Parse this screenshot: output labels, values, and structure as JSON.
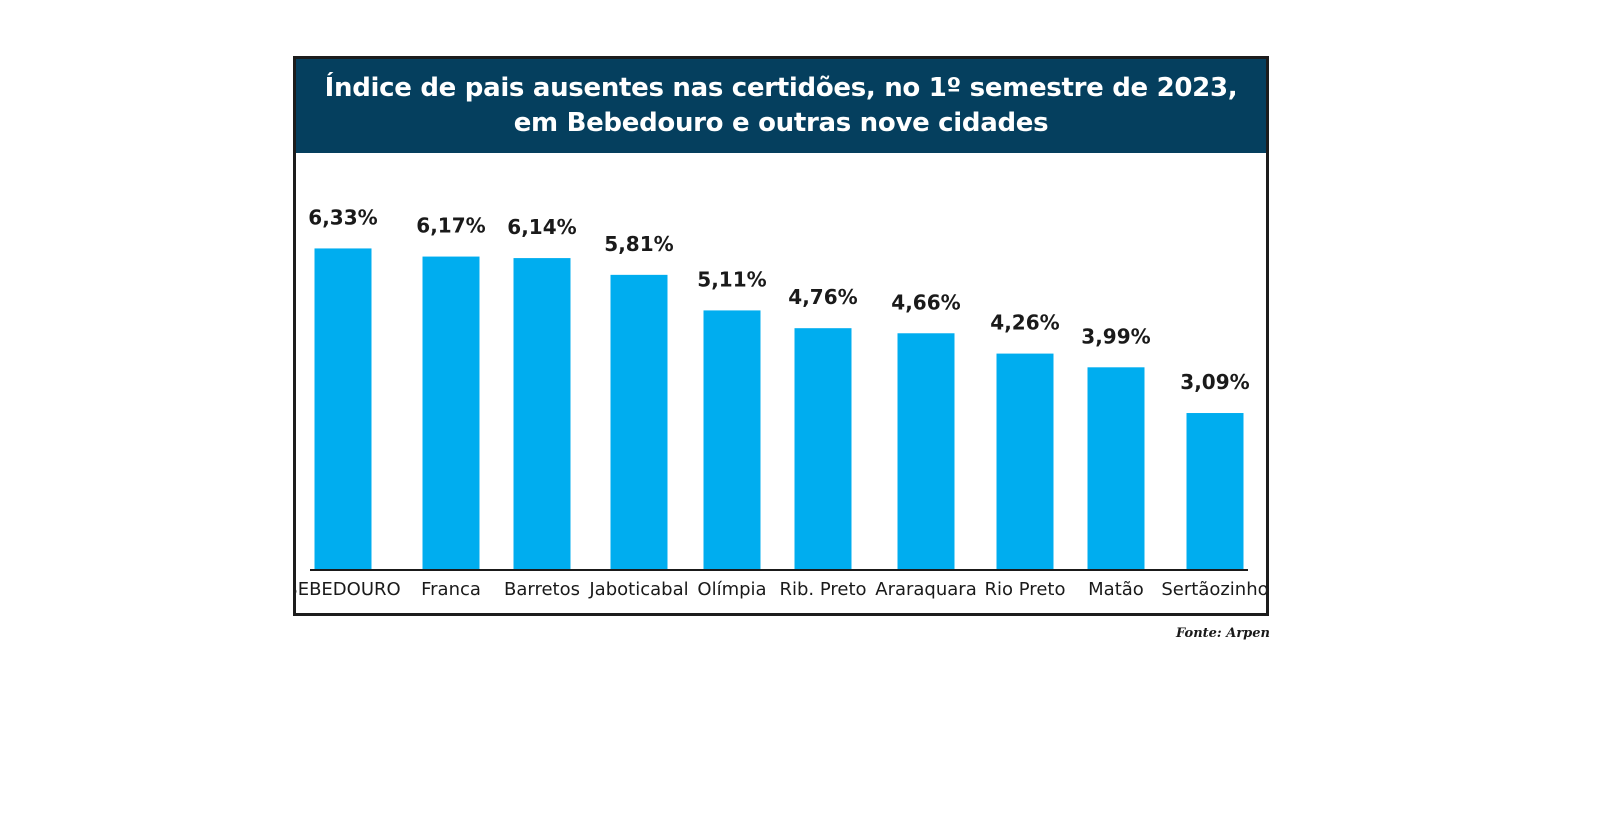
{
  "chart_data": {
    "type": "bar",
    "title_lines": [
      "Índice de pais ausentes nas certidões, no 1º semestre de 2023,",
      "em Bebedouro e outras nove cidades"
    ],
    "categories": [
      "BEBEDOURO",
      "Franca",
      "Barretos",
      "Jaboticabal",
      "Olímpia",
      "Rib. Preto",
      "Araraquara",
      "Rio Preto",
      "Matão",
      "Sertãozinho"
    ],
    "values": [
      6.33,
      6.17,
      6.14,
      5.81,
      5.11,
      4.76,
      4.66,
      4.26,
      3.99,
      3.09
    ],
    "value_labels": [
      "6,33%",
      "6,17%",
      "6,14%",
      "5,81%",
      "5,11%",
      "4,76%",
      "4,66%",
      "4,26%",
      "3,99%",
      "3,09%"
    ],
    "unit": "%",
    "bar_color": "#00adef",
    "header_color": "#053f5e",
    "grid": false,
    "legend": "none"
  },
  "source": "Fonte: Arpen"
}
